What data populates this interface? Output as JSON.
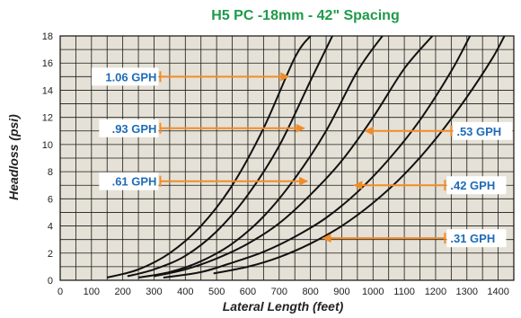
{
  "chart_data": {
    "type": "line",
    "title": "H5 PC -18mm - 42\" Spacing",
    "xlabel": "Lateral Length (feet)",
    "ylabel": "Headloss (psi)",
    "xlim": [
      0,
      1450
    ],
    "ylim": [
      0,
      18
    ],
    "x_ticks": [
      0,
      100,
      200,
      300,
      400,
      500,
      600,
      700,
      800,
      900,
      1000,
      1100,
      1200,
      1300,
      1400
    ],
    "y_ticks": [
      0,
      2,
      4,
      6,
      8,
      10,
      12,
      14,
      16,
      18
    ],
    "grid": true,
    "plot_background": "#e5e1d6",
    "line_color": "#111111",
    "annotation_text_color": "#1f6bb8",
    "arrow_color": "#f28c28",
    "title_color": "#1f9a4a",
    "series": [
      {
        "x": [
          150,
          250,
          350,
          450,
          550,
          650,
          750,
          800
        ],
        "y": [
          0.2,
          0.8,
          2.0,
          4.0,
          7.0,
          11.2,
          16.4,
          18.0
        ]
      },
      {
        "x": [
          215,
          300,
          400,
          500,
          600,
          700,
          800,
          870
        ],
        "y": [
          0.3,
          0.8,
          1.8,
          3.6,
          6.3,
          9.9,
          14.7,
          18.0
        ]
      },
      {
        "x": [
          250,
          350,
          450,
          550,
          650,
          750,
          850,
          950,
          1030
        ],
        "y": [
          0.2,
          0.6,
          1.4,
          2.7,
          4.7,
          7.5,
          11.0,
          15.4,
          18.0
        ]
      },
      {
        "x": [
          300,
          400,
          500,
          600,
          700,
          800,
          900,
          1000,
          1100,
          1190
        ],
        "y": [
          0.3,
          0.8,
          1.6,
          2.7,
          4.2,
          6.3,
          8.8,
          12.0,
          15.6,
          18.0
        ]
      },
      {
        "x": [
          330,
          450,
          550,
          650,
          750,
          850,
          950,
          1050,
          1150,
          1250,
          1310
        ],
        "y": [
          0.2,
          0.6,
          1.3,
          2.1,
          3.2,
          4.6,
          6.5,
          8.9,
          11.8,
          15.4,
          18.0
        ]
      },
      {
        "x": [
          490,
          600,
          700,
          800,
          900,
          1000,
          1100,
          1200,
          1300,
          1380,
          1420
        ],
        "y": [
          0.5,
          1.0,
          1.7,
          2.7,
          4.0,
          5.7,
          7.8,
          10.4,
          13.5,
          16.3,
          18.0
        ]
      }
    ],
    "annotations": [
      {
        "text": "1.06 GPH",
        "side": "left",
        "from": [
          320,
          15
        ],
        "to": [
          730,
          15
        ]
      },
      {
        "text": ".93 GPH",
        "side": "left",
        "from": [
          320,
          11.2
        ],
        "to": [
          780,
          11.2
        ]
      },
      {
        "text": ".61 GPH",
        "side": "left",
        "from": [
          320,
          7.3
        ],
        "to": [
          790,
          7.3
        ]
      },
      {
        "text": ".53 GPH",
        "side": "right",
        "from": [
          1250,
          11
        ],
        "to": [
          975,
          11
        ]
      },
      {
        "text": ".42 GPH",
        "side": "right",
        "from": [
          1230,
          7.0
        ],
        "to": [
          940,
          7.0
        ]
      },
      {
        "text": ".31 GPH",
        "side": "right",
        "from": [
          1230,
          3.1
        ],
        "to": [
          840,
          3.1
        ]
      }
    ]
  }
}
